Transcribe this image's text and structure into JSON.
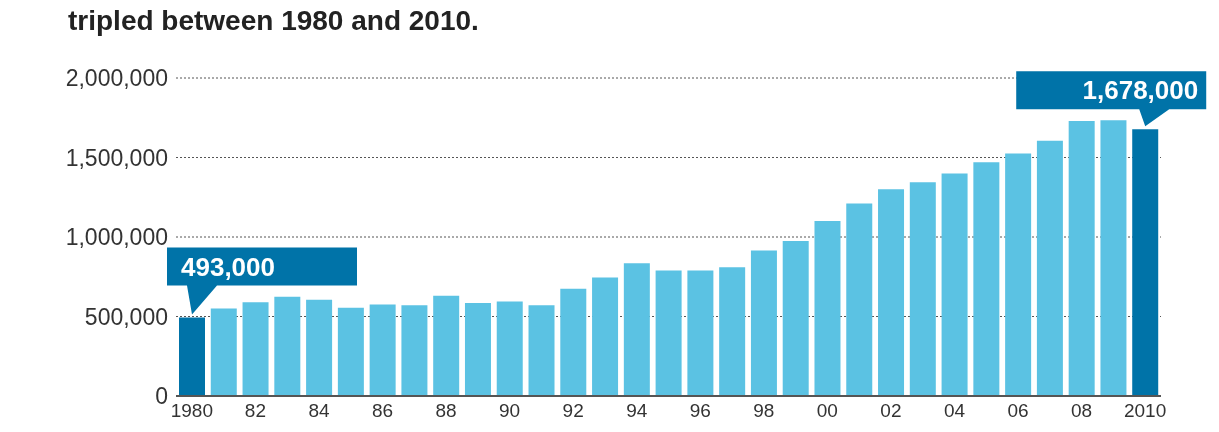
{
  "chart_data": {
    "type": "bar",
    "title": "tripled between 1980 and 2010.",
    "categories": [
      "1980",
      null,
      "82",
      null,
      "84",
      null,
      "86",
      null,
      "88",
      null,
      "90",
      null,
      "92",
      null,
      "94",
      null,
      "96",
      null,
      "98",
      null,
      "00",
      null,
      "02",
      null,
      "04",
      null,
      "06",
      null,
      "08",
      null,
      "2010"
    ],
    "values": [
      493000,
      550000,
      590000,
      625000,
      605000,
      555000,
      575000,
      570000,
      630000,
      585000,
      595000,
      570000,
      675000,
      745000,
      835000,
      790000,
      790000,
      810000,
      915000,
      975000,
      1100000,
      1210000,
      1300000,
      1345000,
      1400000,
      1470000,
      1525000,
      1605000,
      1730000,
      1735000,
      1678000
    ],
    "colors": [
      "#0073a8",
      "#5bc2e3",
      "#5bc2e3",
      "#5bc2e3",
      "#5bc2e3",
      "#5bc2e3",
      "#5bc2e3",
      "#5bc2e3",
      "#5bc2e3",
      "#5bc2e3",
      "#5bc2e3",
      "#5bc2e3",
      "#5bc2e3",
      "#5bc2e3",
      "#5bc2e3",
      "#5bc2e3",
      "#5bc2e3",
      "#5bc2e3",
      "#5bc2e3",
      "#5bc2e3",
      "#5bc2e3",
      "#5bc2e3",
      "#5bc2e3",
      "#5bc2e3",
      "#5bc2e3",
      "#5bc2e3",
      "#5bc2e3",
      "#5bc2e3",
      "#5bc2e3",
      "#5bc2e3",
      "#0073a8"
    ],
    "value_labels": [
      "493,000",
      null,
      null,
      null,
      null,
      null,
      null,
      null,
      null,
      null,
      null,
      null,
      null,
      null,
      null,
      null,
      null,
      null,
      null,
      null,
      null,
      null,
      null,
      null,
      null,
      null,
      null,
      null,
      null,
      null,
      "1,678,000"
    ],
    "ylim": [
      0,
      2000000
    ],
    "yticks": [
      {
        "value": 0,
        "label": "0"
      },
      {
        "value": 500000,
        "label": "500,000"
      },
      {
        "value": 1000000,
        "label": "1,000,000"
      },
      {
        "value": 1500000,
        "label": "1,500,000"
      },
      {
        "value": 2000000,
        "label": "2,000,000"
      }
    ],
    "grid": "y",
    "legend": false
  }
}
